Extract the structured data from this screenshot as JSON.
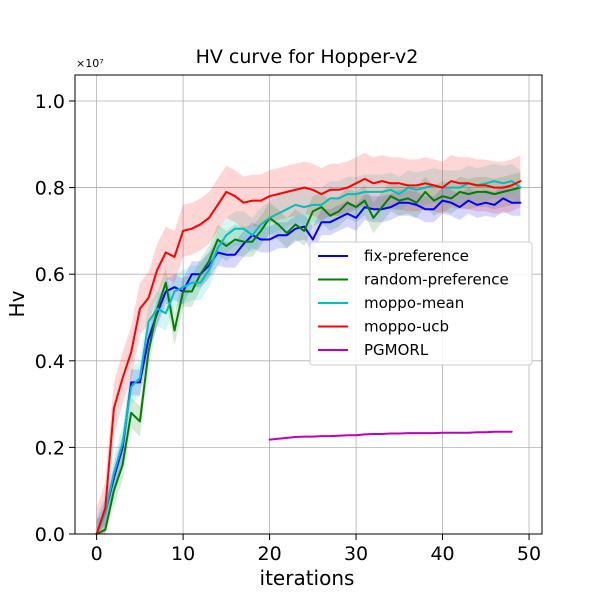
{
  "chart_data": {
    "type": "line",
    "title": "HV curve for Hopper-v2",
    "xlabel": "iterations",
    "ylabel": "Hv",
    "y_offset_label": "×10⁷",
    "xlim": [
      -2.5,
      51.5
    ],
    "ylim": [
      0.0,
      1.06
    ],
    "xticks": [
      0,
      10,
      20,
      30,
      40,
      50
    ],
    "yticks": [
      0.0,
      0.2,
      0.4,
      0.6,
      0.8,
      1.0
    ],
    "xtick_labels": [
      "0",
      "10",
      "20",
      "30",
      "40",
      "50"
    ],
    "ytick_labels": [
      "0.0",
      "0.2",
      "0.4",
      "0.6",
      "0.8",
      "1.0"
    ],
    "grid": true,
    "legend_position": "center-right",
    "series": [
      {
        "name": "fix-preference",
        "color": "#0000ff",
        "x_start": 0,
        "values": [
          0.0,
          0.05,
          0.13,
          0.2,
          0.35,
          0.35,
          0.45,
          0.51,
          0.56,
          0.57,
          0.56,
          0.6,
          0.6,
          0.62,
          0.65,
          0.645,
          0.645,
          0.67,
          0.69,
          0.68,
          0.68,
          0.69,
          0.69,
          0.705,
          0.71,
          0.68,
          0.72,
          0.72,
          0.73,
          0.74,
          0.73,
          0.755,
          0.75,
          0.75,
          0.755,
          0.765,
          0.765,
          0.76,
          0.75,
          0.75,
          0.77,
          0.765,
          0.755,
          0.77,
          0.76,
          0.765,
          0.76,
          0.775,
          0.765,
          0.765
        ],
        "band": 0.03
      },
      {
        "name": "random-preference",
        "color": "#008000",
        "x_start": 0,
        "values": [
          0.0,
          0.01,
          0.1,
          0.16,
          0.28,
          0.26,
          0.42,
          0.52,
          0.58,
          0.47,
          0.56,
          0.56,
          0.6,
          0.63,
          0.68,
          0.665,
          0.68,
          0.675,
          0.675,
          0.7,
          0.73,
          0.715,
          0.695,
          0.715,
          0.7,
          0.745,
          0.755,
          0.735,
          0.745,
          0.765,
          0.755,
          0.77,
          0.73,
          0.755,
          0.78,
          0.77,
          0.775,
          0.765,
          0.79,
          0.77,
          0.78,
          0.775,
          0.79,
          0.785,
          0.79,
          0.79,
          0.785,
          0.79,
          0.795,
          0.8
        ],
        "band": 0.035
      },
      {
        "name": "moppo-mean",
        "color": "#00bfbf",
        "x_start": 0,
        "values": [
          0.0,
          0.05,
          0.14,
          0.21,
          0.34,
          0.36,
          0.49,
          0.52,
          0.51,
          0.56,
          0.57,
          0.58,
          0.58,
          0.61,
          0.66,
          0.69,
          0.705,
          0.705,
          0.69,
          0.715,
          0.73,
          0.74,
          0.75,
          0.76,
          0.755,
          0.76,
          0.76,
          0.775,
          0.775,
          0.785,
          0.785,
          0.79,
          0.79,
          0.79,
          0.795,
          0.785,
          0.8,
          0.795,
          0.8,
          0.805,
          0.8,
          0.8,
          0.8,
          0.81,
          0.805,
          0.81,
          0.815,
          0.81,
          0.815,
          0.8
        ],
        "band": 0.04
      },
      {
        "name": "moppo-ucb",
        "color": "#ff0000",
        "x_start": 0,
        "values": [
          0.0,
          0.06,
          0.29,
          0.36,
          0.42,
          0.52,
          0.545,
          0.61,
          0.65,
          0.64,
          0.7,
          0.705,
          0.715,
          0.73,
          0.76,
          0.79,
          0.78,
          0.765,
          0.77,
          0.77,
          0.78,
          0.785,
          0.79,
          0.795,
          0.8,
          0.795,
          0.785,
          0.795,
          0.795,
          0.8,
          0.81,
          0.82,
          0.81,
          0.815,
          0.81,
          0.81,
          0.805,
          0.805,
          0.81,
          0.805,
          0.8,
          0.815,
          0.81,
          0.81,
          0.805,
          0.805,
          0.8,
          0.8,
          0.805,
          0.815
        ],
        "band": 0.06
      },
      {
        "name": "PGMORL",
        "color": "#bf00bf",
        "x_start": 20,
        "values": [
          0.218,
          0.22,
          0.222,
          0.224,
          0.225,
          0.225,
          0.226,
          0.226,
          0.227,
          0.228,
          0.228,
          0.23,
          0.231,
          0.231,
          0.232,
          0.232,
          0.233,
          0.233,
          0.233,
          0.233,
          0.234,
          0.234,
          0.234,
          0.234,
          0.235,
          0.235,
          0.236,
          0.236,
          0.236
        ],
        "band": 0.0
      }
    ]
  }
}
